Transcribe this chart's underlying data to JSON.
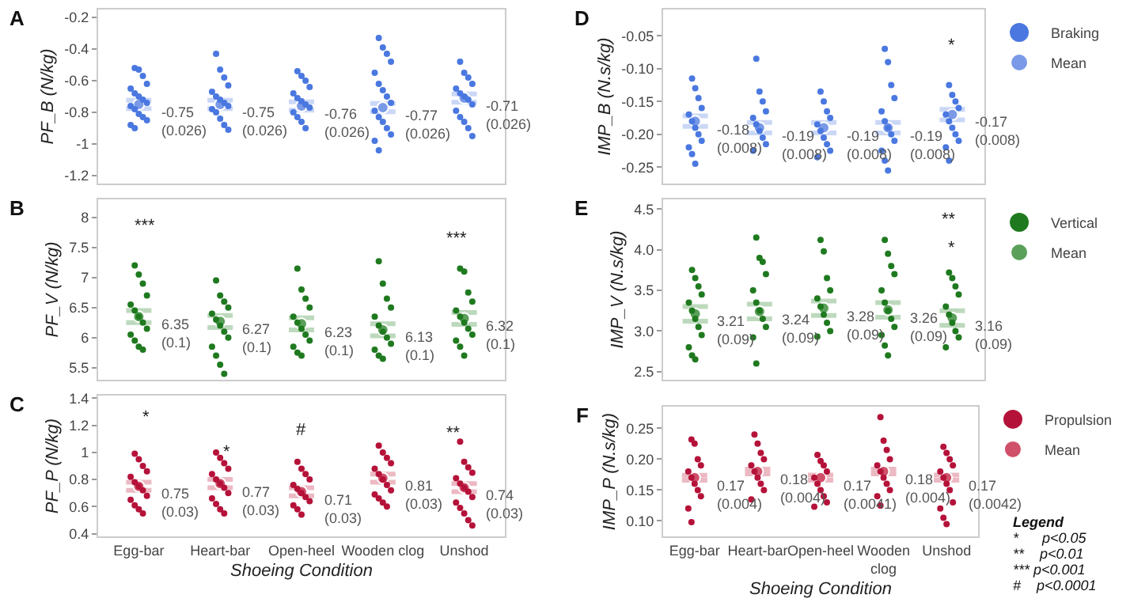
{
  "chart_data": [
    {
      "type": "scatter",
      "title": "A",
      "ylabel": "PF_B (N/kg)",
      "categories": [
        "Egg-bar",
        "Heart-bar",
        "Open-heel",
        "Wooden clog",
        "Unshod"
      ],
      "ylim": [
        -1.25,
        -0.15
      ],
      "yticks": [
        -1.2,
        -1.0,
        -0.8,
        -0.6,
        -0.4,
        -0.2
      ],
      "tick_labels": "y",
      "marker": "circle",
      "grid": false,
      "legend": false,
      "series": [
        {
          "color": "#4a78e0",
          "x": [
            "Egg-bar",
            "Egg-bar",
            "Egg-bar",
            "Egg-bar",
            "Egg-bar",
            "Egg-bar",
            "Egg-bar",
            "Egg-bar",
            "Egg-bar",
            "Egg-bar",
            "Egg-bar",
            "Egg-bar",
            "Egg-bar",
            "Egg-bar",
            "Egg-bar",
            "Egg-bar",
            "Heart-bar",
            "Heart-bar",
            "Heart-bar",
            "Heart-bar",
            "Heart-bar",
            "Heart-bar",
            "Heart-bar",
            "Heart-bar",
            "Heart-bar",
            "Heart-bar",
            "Heart-bar",
            "Heart-bar",
            "Heart-bar",
            "Heart-bar",
            "Open-heel",
            "Open-heel",
            "Open-heel",
            "Open-heel",
            "Open-heel",
            "Open-heel",
            "Open-heel",
            "Open-heel",
            "Open-heel",
            "Open-heel",
            "Open-heel",
            "Open-heel",
            "Open-heel",
            "Wooden clog",
            "Wooden clog",
            "Wooden clog",
            "Wooden clog",
            "Wooden clog",
            "Wooden clog",
            "Wooden clog",
            "Wooden clog",
            "Wooden clog",
            "Wooden clog",
            "Wooden clog",
            "Wooden clog",
            "Wooden clog",
            "Wooden clog",
            "Wooden clog",
            "Wooden clog",
            "Unshod",
            "Unshod",
            "Unshod",
            "Unshod",
            "Unshod",
            "Unshod",
            "Unshod",
            "Unshod",
            "Unshod",
            "Unshod",
            "Unshod",
            "Unshod",
            "Unshod",
            "Unshod"
          ],
          "values": [
            -0.52,
            -0.53,
            -0.57,
            -0.62,
            -0.65,
            -0.68,
            -0.7,
            -0.72,
            -0.74,
            -0.76,
            -0.78,
            -0.81,
            -0.83,
            -0.85,
            -0.88,
            -0.9,
            -0.43,
            -0.53,
            -0.58,
            -0.63,
            -0.67,
            -0.7,
            -0.72,
            -0.74,
            -0.76,
            -0.78,
            -0.8,
            -0.84,
            -0.88,
            -0.91,
            -0.54,
            -0.57,
            -0.6,
            -0.64,
            -0.68,
            -0.71,
            -0.73,
            -0.75,
            -0.77,
            -0.8,
            -0.83,
            -0.86,
            -0.9,
            -0.33,
            -0.39,
            -0.43,
            -0.48,
            -0.55,
            -0.62,
            -0.66,
            -0.7,
            -0.74,
            -0.79,
            -0.83,
            -0.86,
            -0.9,
            -0.94,
            -0.98,
            -1.04,
            -0.48,
            -0.55,
            -0.58,
            -0.62,
            -0.65,
            -0.68,
            -0.7,
            -0.72,
            -0.75,
            -0.79,
            -0.83,
            -0.86,
            -0.9,
            -0.95
          ]
        },
        {
          "color": "#7a9ae8",
          "values": [
            -0.75,
            -0.75,
            -0.76,
            -0.77,
            -0.71
          ],
          "errors": [
            0.026,
            0.026,
            0.026,
            0.026,
            0.026
          ],
          "value_labels": [
            "-0.75\n(0.026)",
            "-0.75\n(0.026)",
            "-0.76\n(0.026)",
            "-0.77\n(0.026)",
            "-0.71\n(0.026)"
          ]
        }
      ]
    },
    {
      "type": "scatter",
      "title": "B",
      "ylabel": "PF_V (N/kg)",
      "categories": [
        "Egg-bar",
        "Heart-bar",
        "Open-heel",
        "Wooden clog",
        "Unshod"
      ],
      "ylim": [
        5.3,
        8.3
      ],
      "yticks": [
        5.5,
        6.0,
        6.5,
        7.0,
        7.5,
        8.0
      ],
      "tick_labels": "y",
      "marker": "circle",
      "grid": false,
      "legend": false,
      "annotations": [
        "***",
        "***"
      ],
      "series": [
        {
          "color": "#1f7a1f",
          "x": [
            "Egg-bar",
            "Egg-bar",
            "Egg-bar",
            "Egg-bar",
            "Egg-bar",
            "Egg-bar",
            "Egg-bar",
            "Egg-bar",
            "Egg-bar",
            "Egg-bar",
            "Egg-bar",
            "Egg-bar",
            "Egg-bar",
            "Heart-bar",
            "Heart-bar",
            "Heart-bar",
            "Heart-bar",
            "Heart-bar",
            "Heart-bar",
            "Heart-bar",
            "Heart-bar",
            "Heart-bar",
            "Heart-bar",
            "Heart-bar",
            "Heart-bar",
            "Heart-bar",
            "Open-heel",
            "Open-heel",
            "Open-heel",
            "Open-heel",
            "Open-heel",
            "Open-heel",
            "Open-heel",
            "Open-heel",
            "Open-heel",
            "Open-heel",
            "Open-heel",
            "Open-heel",
            "Wooden clog",
            "Wooden clog",
            "Wooden clog",
            "Wooden clog",
            "Wooden clog",
            "Wooden clog",
            "Wooden clog",
            "Wooden clog",
            "Wooden clog",
            "Wooden clog",
            "Wooden clog",
            "Wooden clog",
            "Unshod",
            "Unshod",
            "Unshod",
            "Unshod",
            "Unshod",
            "Unshod",
            "Unshod",
            "Unshod",
            "Unshod",
            "Unshod",
            "Unshod",
            "Unshod"
          ],
          "values": [
            7.2,
            7.05,
            6.9,
            6.7,
            6.55,
            6.45,
            6.35,
            6.25,
            6.15,
            6.05,
            5.95,
            5.85,
            5.8,
            6.95,
            6.7,
            6.6,
            6.5,
            6.4,
            6.3,
            6.2,
            6.1,
            6.0,
            5.85,
            5.7,
            5.55,
            5.4,
            7.15,
            6.8,
            6.65,
            6.5,
            6.35,
            6.25,
            6.15,
            6.05,
            5.95,
            5.85,
            5.75,
            5.7,
            7.27,
            6.9,
            6.65,
            6.5,
            6.35,
            6.2,
            6.1,
            6.0,
            5.9,
            5.8,
            5.7,
            5.65,
            7.15,
            7.1,
            6.75,
            6.6,
            6.45,
            6.35,
            6.25,
            6.15,
            6.05,
            5.95,
            5.85,
            5.7
          ]
        },
        {
          "color": "#5aa05a",
          "values": [
            6.35,
            6.27,
            6.23,
            6.13,
            6.32
          ],
          "errors": [
            0.1,
            0.1,
            0.1,
            0.1,
            0.1
          ],
          "value_labels": [
            "6.35\n(0.1)",
            "6.27\n(0.1)",
            "6.23\n(0.1)",
            "6.13\n(0.1)",
            "6.32\n(0.1)"
          ]
        }
      ]
    },
    {
      "type": "scatter",
      "title": "C",
      "ylabel": "PF_P (N/kg)",
      "xlabel": "Shoeing Condition",
      "categories": [
        "Egg-bar",
        "Heart-bar",
        "Open-heel",
        "Wooden clog",
        "Unshod"
      ],
      "ylim": [
        0.38,
        1.42
      ],
      "yticks": [
        {
          "value": 0.4,
          "label": "0.4"
        },
        {
          "value": 0.6,
          "label": "0.6"
        },
        {
          "value": 0.8,
          "label": "0.8"
        },
        1,
        1.2,
        1.4
      ],
      "marker": "circle",
      "grid": false,
      "legend": false,
      "annotations": [
        "*",
        "*",
        "#",
        "**"
      ],
      "series": [
        {
          "color": "#b5123a",
          "x": [
            "Egg-bar",
            "Egg-bar",
            "Egg-bar",
            "Egg-bar",
            "Egg-bar",
            "Egg-bar",
            "Egg-bar",
            "Egg-bar",
            "Egg-bar",
            "Egg-bar",
            "Egg-bar",
            "Egg-bar",
            "Egg-bar",
            "Heart-bar",
            "Heart-bar",
            "Heart-bar",
            "Heart-bar",
            "Heart-bar",
            "Heart-bar",
            "Heart-bar",
            "Heart-bar",
            "Heart-bar",
            "Heart-bar",
            "Heart-bar",
            "Heart-bar",
            "Heart-bar",
            "Open-heel",
            "Open-heel",
            "Open-heel",
            "Open-heel",
            "Open-heel",
            "Open-heel",
            "Open-heel",
            "Open-heel",
            "Open-heel",
            "Open-heel",
            "Open-heel",
            "Open-heel",
            "Wooden clog",
            "Wooden clog",
            "Wooden clog",
            "Wooden clog",
            "Wooden clog",
            "Wooden clog",
            "Wooden clog",
            "Wooden clog",
            "Wooden clog",
            "Wooden clog",
            "Wooden clog",
            "Wooden clog",
            "Wooden clog",
            "Unshod",
            "Unshod",
            "Unshod",
            "Unshod",
            "Unshod",
            "Unshod",
            "Unshod",
            "Unshod",
            "Unshod",
            "Unshod",
            "Unshod",
            "Unshod",
            "Unshod",
            "Unshod"
          ],
          "values": [
            0.99,
            0.95,
            0.9,
            0.86,
            0.82,
            0.78,
            0.75,
            0.72,
            0.68,
            0.65,
            0.61,
            0.58,
            0.55,
            1.0,
            0.96,
            0.92,
            0.88,
            0.84,
            0.8,
            0.77,
            0.74,
            0.7,
            0.66,
            0.62,
            0.58,
            0.55,
            0.93,
            0.88,
            0.84,
            0.8,
            0.76,
            0.73,
            0.7,
            0.67,
            0.64,
            0.61,
            0.58,
            0.54,
            1.05,
            1.0,
            0.96,
            0.92,
            0.88,
            0.84,
            0.8,
            0.76,
            0.72,
            0.69,
            0.66,
            0.63,
            0.6,
            1.08,
            0.93,
            0.89,
            0.85,
            0.81,
            0.77,
            0.74,
            0.71,
            0.67,
            0.63,
            0.59,
            0.55,
            0.5,
            0.46
          ]
        },
        {
          "color": "#d0506a",
          "values": [
            0.75,
            0.77,
            0.71,
            0.81,
            0.74
          ],
          "errors": [
            0.03,
            0.03,
            0.03,
            0.03,
            0.03
          ],
          "value_labels": [
            "0.75\n(0.03)",
            "0.77\n(0.03)",
            "0.71\n(0.03)",
            "0.81\n(0.03)",
            "0.74\n(0.03)"
          ]
        }
      ]
    },
    {
      "type": "scatter",
      "title": "D",
      "ylabel": "IMP_B (N.s/kg)",
      "categories": [
        "Egg-bar",
        "Heart-bar",
        "Open-heel",
        "Wooden clog",
        "Unshod"
      ],
      "ylim": [
        -0.275,
        -0.01
      ],
      "yticks": [
        {
          "value": -0.25,
          "label": "-0.25"
        },
        {
          "value": -0.2,
          "label": "-0.20"
        },
        {
          "value": -0.15,
          "label": "-0.15"
        },
        {
          "value": -0.1,
          "label": "-0.10"
        },
        -0.05
      ],
      "tick_labels": "y",
      "marker": "circle",
      "grid": false,
      "legend": "top right",
      "annotations": [
        "*"
      ],
      "series": [
        {
          "name": "Braking",
          "color": "#4a78e0",
          "x": [
            "Egg-bar",
            "Egg-bar",
            "Egg-bar",
            "Egg-bar",
            "Egg-bar",
            "Egg-bar",
            "Egg-bar",
            "Egg-bar",
            "Egg-bar",
            "Egg-bar",
            "Egg-bar",
            "Egg-bar",
            "Heart-bar",
            "Heart-bar",
            "Heart-bar",
            "Heart-bar",
            "Heart-bar",
            "Heart-bar",
            "Heart-bar",
            "Heart-bar",
            "Heart-bar",
            "Heart-bar",
            "Open-heel",
            "Open-heel",
            "Open-heel",
            "Open-heel",
            "Open-heel",
            "Open-heel",
            "Open-heel",
            "Open-heel",
            "Open-heel",
            "Open-heel",
            "Wooden clog",
            "Wooden clog",
            "Wooden clog",
            "Wooden clog",
            "Wooden clog",
            "Wooden clog",
            "Wooden clog",
            "Wooden clog",
            "Wooden clog",
            "Wooden clog",
            "Wooden clog",
            "Wooden clog",
            "Unshod",
            "Unshod",
            "Unshod",
            "Unshod",
            "Unshod",
            "Unshod",
            "Unshod",
            "Unshod",
            "Unshod",
            "Unshod",
            "Unshod"
          ],
          "values": [
            -0.115,
            -0.13,
            -0.145,
            -0.16,
            -0.17,
            -0.18,
            -0.19,
            -0.2,
            -0.21,
            -0.22,
            -0.23,
            -0.245,
            -0.085,
            -0.135,
            -0.15,
            -0.165,
            -0.175,
            -0.185,
            -0.195,
            -0.205,
            -0.215,
            -0.225,
            -0.135,
            -0.15,
            -0.165,
            -0.175,
            -0.185,
            -0.195,
            -0.205,
            -0.215,
            -0.225,
            -0.235,
            -0.07,
            -0.09,
            -0.125,
            -0.145,
            -0.165,
            -0.18,
            -0.19,
            -0.2,
            -0.21,
            -0.225,
            -0.24,
            -0.255,
            -0.125,
            -0.14,
            -0.15,
            -0.16,
            -0.17,
            -0.18,
            -0.19,
            -0.2,
            -0.21,
            -0.22,
            -0.24
          ]
        },
        {
          "name": "Mean",
          "color": "#7a9ae8",
          "values": [
            -0.18,
            -0.19,
            -0.19,
            -0.19,
            -0.17
          ],
          "errors": [
            0.008,
            0.008,
            0.008,
            0.008,
            0.008
          ],
          "value_labels": [
            "-0.18\n(0.008)",
            "-0.19\n(0.008)",
            "-0.19\n(0.008)",
            "-0.19\n(0.008)",
            "-0.17\n(0.008)"
          ]
        }
      ]
    },
    {
      "type": "scatter",
      "title": "E",
      "ylabel": "IMP_V (N.s/kg)",
      "categories": [
        "Egg-bar",
        "Heart-bar",
        "Open-heel",
        "Wooden clog",
        "Unshod"
      ],
      "ylim": [
        2.4,
        4.62
      ],
      "yticks": [
        {
          "value": 2.5,
          "label": "2.5"
        },
        {
          "value": 3,
          "label": "3.0"
        },
        {
          "value": 3.5,
          "label": "3.5"
        },
        {
          "value": 4,
          "label": "4.0"
        },
        {
          "value": 4.5,
          "label": "4.5"
        }
      ],
      "tick_labels": "y",
      "marker": "circle",
      "grid": false,
      "legend": "top right",
      "annotations": [
        "**",
        "*"
      ],
      "series": [
        {
          "name": "Vertical",
          "color": "#1f7a1f",
          "x": [
            "Egg-bar",
            "Egg-bar",
            "Egg-bar",
            "Egg-bar",
            "Egg-bar",
            "Egg-bar",
            "Egg-bar",
            "Egg-bar",
            "Egg-bar",
            "Egg-bar",
            "Egg-bar",
            "Egg-bar",
            "Heart-bar",
            "Heart-bar",
            "Heart-bar",
            "Heart-bar",
            "Heart-bar",
            "Heart-bar",
            "Heart-bar",
            "Heart-bar",
            "Heart-bar",
            "Heart-bar",
            "Heart-bar",
            "Open-heel",
            "Open-heel",
            "Open-heel",
            "Open-heel",
            "Open-heel",
            "Open-heel",
            "Open-heel",
            "Open-heel",
            "Open-heel",
            "Open-heel",
            "Wooden clog",
            "Wooden clog",
            "Wooden clog",
            "Wooden clog",
            "Wooden clog",
            "Wooden clog",
            "Wooden clog",
            "Wooden clog",
            "Wooden clog",
            "Wooden clog",
            "Wooden clog",
            "Wooden clog",
            "Unshod",
            "Unshod",
            "Unshod",
            "Unshod",
            "Unshod",
            "Unshod",
            "Unshod",
            "Unshod",
            "Unshod",
            "Unshod"
          ],
          "values": [
            3.75,
            3.65,
            3.55,
            3.45,
            3.35,
            3.25,
            3.15,
            3.05,
            2.95,
            2.8,
            2.7,
            2.65,
            4.15,
            3.9,
            3.85,
            3.7,
            3.5,
            3.35,
            3.25,
            3.15,
            3.05,
            2.92,
            2.6,
            4.12,
            3.98,
            3.65,
            3.5,
            3.4,
            3.3,
            3.2,
            3.1,
            3.0,
            2.93,
            4.12,
            3.95,
            3.8,
            3.7,
            3.5,
            3.35,
            3.25,
            3.15,
            3.05,
            2.95,
            2.82,
            2.7,
            3.72,
            3.65,
            3.55,
            3.45,
            3.3,
            3.2,
            3.1,
            3.0,
            2.92,
            2.8
          ]
        },
        {
          "name": "Mean",
          "color": "#5aa05a",
          "values": [
            3.21,
            3.24,
            3.28,
            3.26,
            3.16
          ],
          "errors": [
            0.09,
            0.09,
            0.09,
            0.09,
            0.09
          ],
          "value_labels": [
            "3.21\n(0.09)",
            "3.24\n(0.09)",
            "3.28\n(0.09)",
            "3.26\n(0.09)",
            "3.16\n(0.09)"
          ]
        }
      ]
    },
    {
      "type": "scatter",
      "title": "F",
      "ylabel": "IMP_P (N.s/kg)",
      "xlabel": "Shoeing Condition",
      "categories": [
        "Egg-bar",
        "Heart-bar",
        "Open-heel",
        "Wooden clog",
        "Unshod"
      ],
      "ylim": [
        0.075,
        0.285
      ],
      "yticks": [
        {
          "value": 0.1,
          "label": "0.10"
        },
        {
          "value": 0.15,
          "label": "0.15"
        },
        {
          "value": 0.2,
          "label": "0.20"
        },
        {
          "value": 0.25,
          "label": "0.25"
        }
      ],
      "marker": "circle",
      "grid": false,
      "legend": "top right",
      "annotations": [
        "Legend",
        "*      p<0.05",
        "**    p<0.01",
        "*** p<0.001",
        "#    p<0.0001"
      ],
      "series": [
        {
          "name": "Propulsion",
          "color": "#b5123a",
          "x": [
            "Egg-bar",
            "Egg-bar",
            "Egg-bar",
            "Egg-bar",
            "Egg-bar",
            "Egg-bar",
            "Egg-bar",
            "Egg-bar",
            "Egg-bar",
            "Egg-bar",
            "Egg-bar",
            "Heart-bar",
            "Heart-bar",
            "Heart-bar",
            "Heart-bar",
            "Heart-bar",
            "Heart-bar",
            "Heart-bar",
            "Heart-bar",
            "Heart-bar",
            "Heart-bar",
            "Open-heel",
            "Open-heel",
            "Open-heel",
            "Open-heel",
            "Open-heel",
            "Open-heel",
            "Open-heel",
            "Open-heel",
            "Open-heel",
            "Open-heel",
            "Wooden clog",
            "Wooden clog",
            "Wooden clog",
            "Wooden clog",
            "Wooden clog",
            "Wooden clog",
            "Wooden clog",
            "Wooden clog",
            "Wooden clog",
            "Wooden clog",
            "Wooden clog",
            "Unshod",
            "Unshod",
            "Unshod",
            "Unshod",
            "Unshod",
            "Unshod",
            "Unshod",
            "Unshod",
            "Unshod",
            "Unshod",
            "Unshod",
            "Unshod"
          ],
          "values": [
            0.232,
            0.225,
            0.2,
            0.19,
            0.18,
            0.17,
            0.16,
            0.15,
            0.14,
            0.12,
            0.098,
            0.24,
            0.225,
            0.21,
            0.2,
            0.19,
            0.18,
            0.17,
            0.16,
            0.15,
            0.135,
            0.207,
            0.197,
            0.19,
            0.18,
            0.17,
            0.16,
            0.15,
            0.14,
            0.13,
            0.123,
            0.268,
            0.23,
            0.215,
            0.2,
            0.19,
            0.18,
            0.17,
            0.16,
            0.15,
            0.14,
            0.125,
            0.22,
            0.21,
            0.2,
            0.19,
            0.18,
            0.17,
            0.16,
            0.15,
            0.13,
            0.12,
            0.105,
            0.095
          ]
        },
        {
          "name": "Mean",
          "color": "#d0506a",
          "values": [
            0.17,
            0.18,
            0.17,
            0.18,
            0.17
          ],
          "errors": [
            0.004,
            0.004,
            0.0041,
            0.004,
            0.0042
          ],
          "value_labels": [
            "0.17\n(0.004)",
            "0.18\n(0.004)",
            "0.17\n(0.0041)",
            "0.18\n(0.004)",
            "0.17\n(0.0042)"
          ]
        }
      ]
    }
  ]
}
